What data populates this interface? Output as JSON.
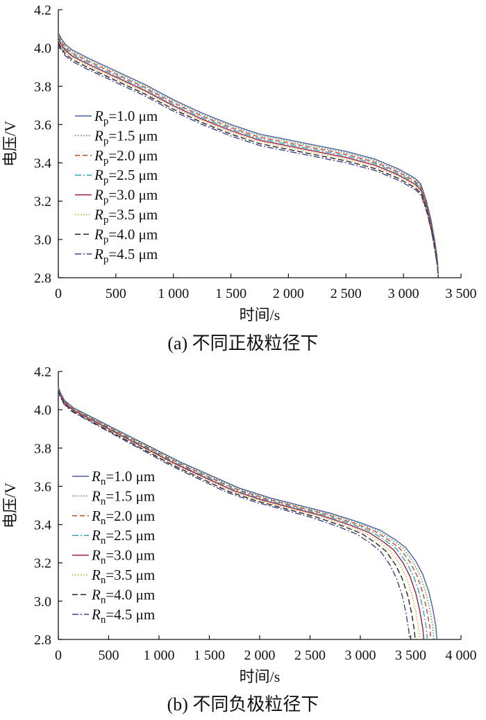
{
  "chart_data": [
    {
      "type": "line",
      "caption": "(a) 不同正极粒径下",
      "xlabel": "时间/s",
      "ylabel": "电压/V",
      "xlim": [
        0,
        3500
      ],
      "ylim": [
        2.8,
        4.2
      ],
      "xticks": [
        0,
        500,
        1000,
        1500,
        2000,
        2500,
        3000,
        3500
      ],
      "xtick_labels": [
        "0",
        "500",
        "1 000",
        "1 500",
        "2 000",
        "2 500",
        "3 000",
        "3 500"
      ],
      "yticks": [
        2.8,
        3.0,
        3.2,
        3.4,
        3.6,
        3.8,
        4.0,
        4.2
      ],
      "ytick_labels": [
        "2.8",
        "3.0",
        "3.2",
        "3.4",
        "3.6",
        "3.8",
        "4.0",
        "4.2"
      ],
      "grid": false,
      "legend_position": "left",
      "series": [
        {
          "name": "Rp=1.0 μm",
          "sym": "R",
          "sub": "p",
          "rest": "=1.0 μm",
          "color": "#4a5e9c",
          "dash": "",
          "shift": 0.0,
          "end": 3300,
          "points": [
            [
              0,
              4.08
            ],
            [
              25,
              4.05
            ],
            [
              60,
              4.02
            ],
            [
              120,
              3.99
            ],
            [
              250,
              3.95
            ],
            [
              500,
              3.88
            ],
            [
              750,
              3.81
            ],
            [
              1000,
              3.73
            ],
            [
              1250,
              3.66
            ],
            [
              1500,
              3.6
            ],
            [
              1750,
              3.55
            ],
            [
              2000,
              3.52
            ],
            [
              2250,
              3.49
            ],
            [
              2500,
              3.46
            ],
            [
              2750,
              3.42
            ],
            [
              2950,
              3.37
            ],
            [
              3100,
              3.32
            ],
            [
              3150,
              3.29
            ],
            [
              3200,
              3.2
            ],
            [
              3240,
              3.1
            ],
            [
              3270,
              3.0
            ],
            [
              3290,
              2.92
            ],
            [
              3300,
              2.85
            ]
          ]
        },
        {
          "name": "Rp=1.5 μm",
          "sym": "R",
          "sub": "p",
          "rest": "=1.5 μm",
          "color": "#3f8a3a",
          "dash": "1.5,2.5",
          "shift": -0.008,
          "end": 3300
        },
        {
          "name": "Rp=2.0 μm",
          "sym": "R",
          "sub": "p",
          "rest": "=2.0 μm",
          "color": "#c9452f",
          "dash": "7,4",
          "shift": -0.016,
          "end": 3300
        },
        {
          "name": "Rp=2.5 μm",
          "sym": "R",
          "sub": "p",
          "rest": "=2.5 μm",
          "color": "#2fa7b7",
          "dash": "9,3,2,3",
          "shift": -0.024,
          "end": 3302
        },
        {
          "name": "Rp=3.0 μm",
          "sym": "R",
          "sub": "p",
          "rest": "=3.0 μm",
          "color": "#9c1b45",
          "dash": "",
          "shift": -0.032,
          "end": 3302
        },
        {
          "name": "Rp=3.5 μm",
          "sym": "R",
          "sub": "p",
          "rest": "=3.5 μm",
          "color": "#e0a020",
          "dash": "1.5,2.5",
          "shift": -0.04,
          "end": 3303
        },
        {
          "name": "Rp=4.0 μm",
          "sym": "R",
          "sub": "p",
          "rest": "=4.0 μm",
          "color": "#222222",
          "dash": "8,4",
          "shift": -0.05,
          "end": 3303
        },
        {
          "name": "Rp=4.5 μm",
          "sym": "R",
          "sub": "p",
          "rest": "=4.5 μm",
          "color": "#3b3f8f",
          "dash": "9,3,2,3",
          "shift": -0.06,
          "end": 3304
        }
      ]
    },
    {
      "type": "line",
      "caption": "(b) 不同负极粒径下",
      "xlabel": "时间/s",
      "ylabel": "电压/V",
      "xlim": [
        0,
        4000
      ],
      "ylim": [
        2.8,
        4.2
      ],
      "xticks": [
        0,
        500,
        1000,
        1500,
        2000,
        2500,
        3000,
        3500,
        4000
      ],
      "xtick_labels": [
        "0",
        "500",
        "1 000",
        "1 500",
        "2 000",
        "2 500",
        "3 000",
        "3 500",
        "4 000"
      ],
      "yticks": [
        2.8,
        3.0,
        3.2,
        3.4,
        3.6,
        3.8,
        4.0,
        4.2
      ],
      "ytick_labels": [
        "2.8",
        "3.0",
        "3.2",
        "3.4",
        "3.6",
        "3.8",
        "4.0",
        "4.2"
      ],
      "grid": false,
      "legend_position": "left",
      "series": [
        {
          "name": "Rn=1.0 μm",
          "sym": "R",
          "sub": "n",
          "rest": "=1.0 μm",
          "color": "#4a5e9c",
          "dash": "",
          "shift": 0.0,
          "end": 3760,
          "points": [
            [
              0,
              4.12
            ],
            [
              20,
              4.09
            ],
            [
              60,
              4.05
            ],
            [
              150,
              4.01
            ],
            [
              300,
              3.97
            ],
            [
              600,
              3.89
            ],
            [
              900,
              3.81
            ],
            [
              1200,
              3.73
            ],
            [
              1500,
              3.66
            ],
            [
              1800,
              3.59
            ],
            [
              2100,
              3.54
            ],
            [
              2400,
              3.5
            ],
            [
              2700,
              3.46
            ],
            [
              3000,
              3.41
            ],
            [
              3200,
              3.37
            ],
            [
              3350,
              3.32
            ],
            [
              3450,
              3.28
            ],
            [
              3550,
              3.21
            ],
            [
              3620,
              3.14
            ],
            [
              3680,
              3.05
            ],
            [
              3720,
              2.96
            ],
            [
              3750,
              2.87
            ],
            [
              3760,
              2.8
            ]
          ]
        },
        {
          "name": "Rn=1.5 μm",
          "sym": "R",
          "sub": "n",
          "rest": "=1.5 μm",
          "color": "#3f8a3a",
          "dash": "1.5,2.5",
          "shift": -0.003,
          "end": 3730
        },
        {
          "name": "Rn=2.0 μm",
          "sym": "R",
          "sub": "n",
          "rest": "=2.0 μm",
          "color": "#c9452f",
          "dash": "7,4",
          "shift": -0.006,
          "end": 3700
        },
        {
          "name": "Rn=2.5 μm",
          "sym": "R",
          "sub": "n",
          "rest": "=2.5 μm",
          "color": "#2fa7b7",
          "dash": "9,3,2,3",
          "shift": -0.009,
          "end": 3665
        },
        {
          "name": "Rn=3.0 μm",
          "sym": "R",
          "sub": "n",
          "rest": "=3.0 μm",
          "color": "#9c1b45",
          "dash": "",
          "shift": -0.012,
          "end": 3630
        },
        {
          "name": "Rn=3.5 μm",
          "sym": "R",
          "sub": "n",
          "rest": "=3.5 μm",
          "color": "#e0a020",
          "dash": "1.5,2.5",
          "shift": -0.015,
          "end": 3590
        },
        {
          "name": "Rn=4.0 μm",
          "sym": "R",
          "sub": "n",
          "rest": "=4.0 μm",
          "color": "#222222",
          "dash": "8,4",
          "shift": -0.018,
          "end": 3545
        },
        {
          "name": "Rn=4.5 μm",
          "sym": "R",
          "sub": "n",
          "rest": "=4.5 μm",
          "color": "#3b3f8f",
          "dash": "9,3,2,3",
          "shift": -0.021,
          "end": 3490
        }
      ]
    }
  ]
}
